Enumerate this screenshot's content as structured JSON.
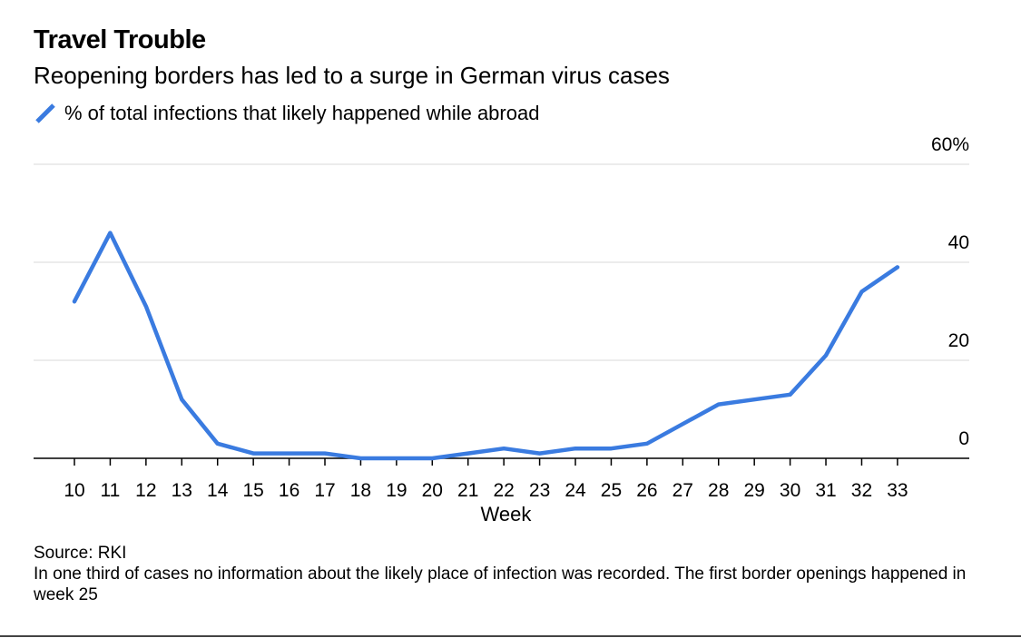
{
  "title": "Travel Trouble",
  "subtitle": "Reopening borders has led to a surge in German virus cases",
  "legend": {
    "label": "% of total infections that likely happened while abroad",
    "color": "#3a7be0"
  },
  "source": "Source: RKI",
  "note": "In one third of cases no information about the likely place of infection was recorded. The first border openings happened in week 25",
  "chart_data": {
    "type": "line",
    "title": "Travel Trouble",
    "subtitle": "Reopening borders has led to a surge in German virus cases",
    "xlabel": "Week",
    "ylabel": "",
    "x": [
      10,
      11,
      12,
      13,
      14,
      15,
      16,
      17,
      18,
      19,
      20,
      21,
      22,
      23,
      24,
      25,
      26,
      27,
      28,
      29,
      30,
      31,
      32,
      33
    ],
    "ylim": [
      0,
      60
    ],
    "yticks": [
      {
        "value": 0,
        "label": "0"
      },
      {
        "value": 20,
        "label": "20"
      },
      {
        "value": 40,
        "label": "40"
      },
      {
        "value": 60,
        "label": "60%"
      }
    ],
    "grid": true,
    "series": [
      {
        "name": "% of total infections that likely happened while abroad",
        "color": "#3a7be0",
        "values": [
          32,
          46,
          31,
          12,
          3,
          1,
          1,
          1,
          0,
          0,
          0,
          1,
          2,
          1,
          2,
          2,
          3,
          7,
          11,
          12,
          13,
          21,
          34,
          39
        ]
      }
    ]
  }
}
